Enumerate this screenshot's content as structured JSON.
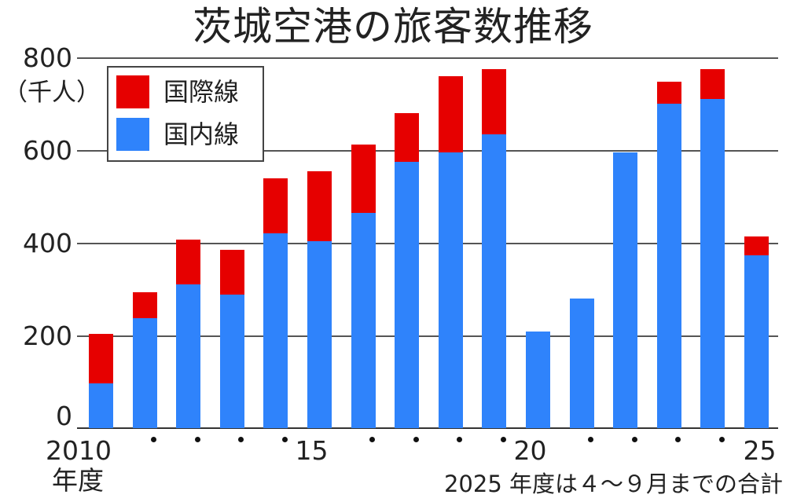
{
  "title": "茨城空港の旅客数推移",
  "unit_label": "（千人）",
  "legend": [
    {
      "label": "国際線",
      "color": "#e60000"
    },
    {
      "label": "国内線",
      "color": "#2f83fb"
    }
  ],
  "x_axis": {
    "first_label": "2010",
    "year_suffix": "年度",
    "labels": [
      "2010",
      "",
      "",
      "",
      "",
      "15",
      "",
      "",
      "",
      "",
      "20",
      "",
      "",
      "",
      "",
      "25"
    ]
  },
  "y_axis": {
    "ticks": [
      "800",
      "600",
      "400",
      "200",
      "0"
    ]
  },
  "note": "2025 年度は４～９月までの合計",
  "chart_data": {
    "type": "bar",
    "stacked": true,
    "title": "茨城空港の旅客数推移",
    "xlabel": "年度",
    "ylabel": "千人",
    "ylim": [
      0,
      800
    ],
    "yticks": [
      0,
      200,
      400,
      600,
      800
    ],
    "grid": true,
    "legend_position": "top-left",
    "categories": [
      "2010",
      "2011",
      "2012",
      "2013",
      "2014",
      "2015",
      "2016",
      "2017",
      "2018",
      "2019",
      "2020",
      "2021",
      "2022",
      "2023",
      "2024",
      "2025"
    ],
    "series": [
      {
        "name": "国内線",
        "color": "#2f83fb",
        "values": [
          97,
          238,
          310,
          289,
          422,
          405,
          465,
          575,
          597,
          636,
          209,
          281,
          597,
          701,
          711,
          373
        ]
      },
      {
        "name": "国際線",
        "color": "#e60000",
        "values": [
          107,
          55,
          98,
          97,
          118,
          150,
          148,
          106,
          164,
          140,
          0,
          0,
          0,
          48,
          65,
          42
        ]
      }
    ],
    "totals": [
      204,
      293,
      408,
      386,
      540,
      555,
      613,
      681,
      761,
      776,
      209,
      281,
      597,
      749,
      776,
      415
    ],
    "annotations": [
      "2025 年度は４～９月までの合計"
    ]
  }
}
